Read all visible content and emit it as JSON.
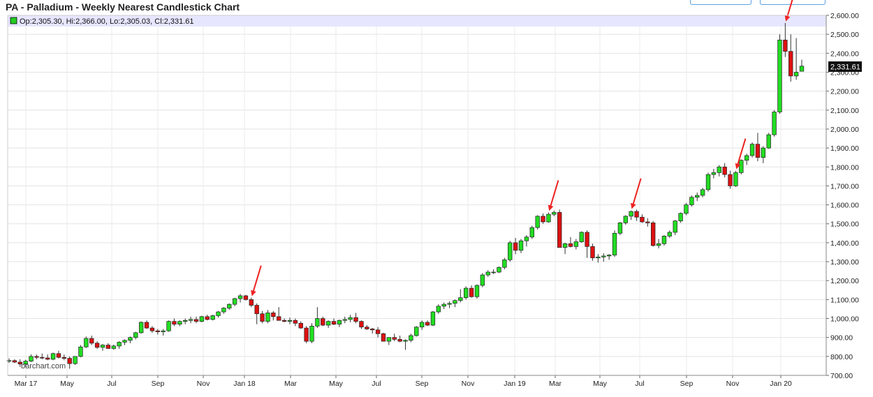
{
  "page": {
    "title": "PA - Palladium - Weekly Nearest Candlestick Chart"
  },
  "legend": {
    "text": "Op:2,305.30, Hi:2,366.00, Lo:2,305.03, Cl:2,331.61",
    "marker_color": "#22cc22"
  },
  "watermark": "barchart.com",
  "last_price": "2,331.61",
  "colors": {
    "up": "#22dd22",
    "down": "#dd1111",
    "arrow": "#ee2222",
    "grid": "#e6e6e6",
    "legend_bg": "#e6e6ff"
  },
  "chart_data": {
    "type": "candlestick",
    "title": "PA - Palladium - Weekly Nearest Candlestick Chart",
    "ylim": [
      700,
      2600
    ],
    "y_ticks": [
      "700.00",
      "800.00",
      "900.00",
      "1,000.00",
      "1,100.00",
      "1,200.00",
      "1,300.00",
      "1,400.00",
      "1,500.00",
      "1,600.00",
      "1,700.00",
      "1,800.00",
      "1,900.00",
      "2,000.00",
      "2,100.00",
      "2,200.00",
      "2,300.00",
      "2,400.00",
      "2,500.00",
      "2,600.00"
    ],
    "x_tick_labels": [
      "Mar 17",
      "May",
      "Jul",
      "Sep",
      "Nov",
      "Jan 18",
      "Mar",
      "May",
      "Jul",
      "Sep",
      "Nov",
      "Jan 19",
      "Mar",
      "May",
      "Jul",
      "Sep",
      "Nov",
      "Jan 20"
    ],
    "grid": true,
    "legend_position": "top-left",
    "candles": [
      [
        775,
        790,
        765,
        778
      ],
      [
        778,
        785,
        765,
        770
      ],
      [
        770,
        785,
        745,
        760
      ],
      [
        760,
        782,
        745,
        775
      ],
      [
        775,
        810,
        770,
        800
      ],
      [
        800,
        810,
        785,
        795
      ],
      [
        795,
        815,
        785,
        792
      ],
      [
        792,
        810,
        780,
        785
      ],
      [
        785,
        820,
        780,
        815
      ],
      [
        815,
        830,
        790,
        795
      ],
      [
        795,
        810,
        780,
        790
      ],
      [
        790,
        800,
        735,
        762
      ],
      [
        762,
        800,
        755,
        800
      ],
      [
        800,
        860,
        795,
        850
      ],
      [
        850,
        905,
        845,
        895
      ],
      [
        895,
        910,
        860,
        870
      ],
      [
        870,
        880,
        840,
        848
      ],
      [
        848,
        865,
        830,
        860
      ],
      [
        860,
        870,
        840,
        842
      ],
      [
        842,
        862,
        835,
        855
      ],
      [
        855,
        880,
        840,
        875
      ],
      [
        875,
        890,
        860,
        885
      ],
      [
        885,
        905,
        870,
        900
      ],
      [
        900,
        930,
        890,
        925
      ],
      [
        925,
        985,
        920,
        980
      ],
      [
        980,
        990,
        945,
        950
      ],
      [
        950,
        960,
        925,
        935
      ],
      [
        935,
        945,
        915,
        930
      ],
      [
        930,
        945,
        910,
        935
      ],
      [
        935,
        990,
        930,
        985
      ],
      [
        985,
        1000,
        960,
        970
      ],
      [
        970,
        990,
        960,
        985
      ],
      [
        985,
        1000,
        970,
        990
      ],
      [
        990,
        1010,
        975,
        995
      ],
      [
        995,
        1010,
        975,
        985
      ],
      [
        985,
        1015,
        980,
        1010
      ],
      [
        1010,
        1020,
        990,
        995
      ],
      [
        995,
        1020,
        990,
        1015
      ],
      [
        1015,
        1040,
        1005,
        1035
      ],
      [
        1035,
        1060,
        1025,
        1055
      ],
      [
        1055,
        1080,
        1045,
        1075
      ],
      [
        1075,
        1110,
        1065,
        1105
      ],
      [
        1105,
        1130,
        1085,
        1120
      ],
      [
        1120,
        1125,
        1095,
        1100
      ],
      [
        1100,
        1110,
        1060,
        1070
      ],
      [
        1070,
        1080,
        970,
        1025
      ],
      [
        1025,
        1040,
        975,
        985
      ],
      [
        985,
        1045,
        975,
        1030
      ],
      [
        1030,
        1040,
        990,
        1010
      ],
      [
        1010,
        1060,
        995,
        990
      ],
      [
        990,
        1000,
        980,
        985
      ],
      [
        985,
        1005,
        970,
        990
      ],
      [
        990,
        1000,
        960,
        975
      ],
      [
        975,
        985,
        945,
        950
      ],
      [
        950,
        960,
        870,
        880
      ],
      [
        880,
        975,
        870,
        960
      ],
      [
        960,
        1060,
        950,
        1000
      ],
      [
        1000,
        1010,
        960,
        965
      ],
      [
        965,
        990,
        950,
        985
      ],
      [
        985,
        1000,
        965,
        970
      ],
      [
        970,
        995,
        955,
        990
      ],
      [
        990,
        1010,
        975,
        995
      ],
      [
        995,
        1020,
        980,
        1005
      ],
      [
        1005,
        1030,
        975,
        985
      ],
      [
        985,
        990,
        945,
        955
      ],
      [
        955,
        965,
        940,
        945
      ],
      [
        945,
        950,
        920,
        940
      ],
      [
        940,
        955,
        900,
        920
      ],
      [
        920,
        925,
        880,
        880
      ],
      [
        880,
        890,
        860,
        900
      ],
      [
        900,
        920,
        880,
        890
      ],
      [
        890,
        910,
        875,
        880
      ],
      [
        880,
        890,
        835,
        885
      ],
      [
        885,
        920,
        875,
        910
      ],
      [
        910,
        960,
        905,
        955
      ],
      [
        955,
        990,
        940,
        980
      ],
      [
        980,
        990,
        960,
        965
      ],
      [
        965,
        1040,
        960,
        1035
      ],
      [
        1035,
        1075,
        1025,
        1065
      ],
      [
        1065,
        1085,
        1050,
        1075
      ],
      [
        1075,
        1090,
        1055,
        1080
      ],
      [
        1080,
        1100,
        1060,
        1095
      ],
      [
        1095,
        1155,
        1085,
        1110
      ],
      [
        1110,
        1170,
        1100,
        1160
      ],
      [
        1160,
        1175,
        1110,
        1115
      ],
      [
        1115,
        1180,
        1105,
        1175
      ],
      [
        1175,
        1240,
        1165,
        1230
      ],
      [
        1230,
        1255,
        1220,
        1245
      ],
      [
        1245,
        1260,
        1235,
        1245
      ],
      [
        1245,
        1275,
        1240,
        1270
      ],
      [
        1270,
        1320,
        1260,
        1310
      ],
      [
        1310,
        1410,
        1300,
        1400
      ],
      [
        1400,
        1425,
        1340,
        1360
      ],
      [
        1360,
        1420,
        1345,
        1410
      ],
      [
        1410,
        1440,
        1380,
        1430
      ],
      [
        1430,
        1490,
        1420,
        1480
      ],
      [
        1480,
        1545,
        1470,
        1540
      ],
      [
        1540,
        1555,
        1500,
        1510
      ],
      [
        1510,
        1560,
        1505,
        1550
      ],
      [
        1550,
        1570,
        1540,
        1560
      ],
      [
        1560,
        1575,
        1390,
        1375
      ],
      [
        1375,
        1400,
        1340,
        1395
      ],
      [
        1395,
        1430,
        1375,
        1380
      ],
      [
        1380,
        1420,
        1365,
        1405
      ],
      [
        1405,
        1460,
        1400,
        1455
      ],
      [
        1455,
        1465,
        1320,
        1380
      ],
      [
        1380,
        1395,
        1305,
        1320
      ],
      [
        1320,
        1340,
        1295,
        1325
      ],
      [
        1325,
        1345,
        1300,
        1330
      ],
      [
        1330,
        1340,
        1310,
        1335
      ],
      [
        1335,
        1465,
        1325,
        1450
      ],
      [
        1450,
        1510,
        1440,
        1505
      ],
      [
        1505,
        1545,
        1495,
        1540
      ],
      [
        1540,
        1570,
        1520,
        1565
      ],
      [
        1565,
        1575,
        1515,
        1535
      ],
      [
        1535,
        1550,
        1505,
        1510
      ],
      [
        1510,
        1530,
        1485,
        1505
      ],
      [
        1505,
        1515,
        1380,
        1385
      ],
      [
        1385,
        1420,
        1370,
        1395
      ],
      [
        1395,
        1440,
        1385,
        1435
      ],
      [
        1435,
        1465,
        1425,
        1455
      ],
      [
        1455,
        1520,
        1440,
        1515
      ],
      [
        1515,
        1560,
        1505,
        1555
      ],
      [
        1555,
        1610,
        1545,
        1600
      ],
      [
        1600,
        1650,
        1590,
        1640
      ],
      [
        1640,
        1665,
        1620,
        1650
      ],
      [
        1650,
        1690,
        1640,
        1680
      ],
      [
        1680,
        1770,
        1670,
        1760
      ],
      [
        1760,
        1790,
        1740,
        1770
      ],
      [
        1770,
        1810,
        1750,
        1800
      ],
      [
        1800,
        1820,
        1745,
        1760
      ],
      [
        1760,
        1780,
        1685,
        1700
      ],
      [
        1700,
        1780,
        1695,
        1770
      ],
      [
        1770,
        1840,
        1760,
        1835
      ],
      [
        1835,
        1870,
        1810,
        1860
      ],
      [
        1860,
        1930,
        1850,
        1920
      ],
      [
        1920,
        1980,
        1830,
        1850
      ],
      [
        1850,
        1910,
        1820,
        1900
      ],
      [
        1900,
        1980,
        1895,
        1970
      ],
      [
        1970,
        2100,
        1960,
        2090
      ],
      [
        2090,
        2500,
        2080,
        2470
      ],
      [
        2470,
        2560,
        2380,
        2410
      ],
      [
        2410,
        2500,
        2250,
        2280
      ],
      [
        2280,
        2480,
        2260,
        2300
      ],
      [
        2305,
        2366,
        2305,
        2332
      ]
    ],
    "annotations": [
      {
        "type": "arrow",
        "label": "",
        "candle": 44
      },
      {
        "type": "arrow",
        "label": "",
        "candle": 98
      },
      {
        "type": "arrow",
        "label": "",
        "candle": 113
      },
      {
        "type": "arrow",
        "label": "",
        "candle": 132
      },
      {
        "type": "arrow",
        "label": "",
        "candle": 141
      }
    ]
  }
}
